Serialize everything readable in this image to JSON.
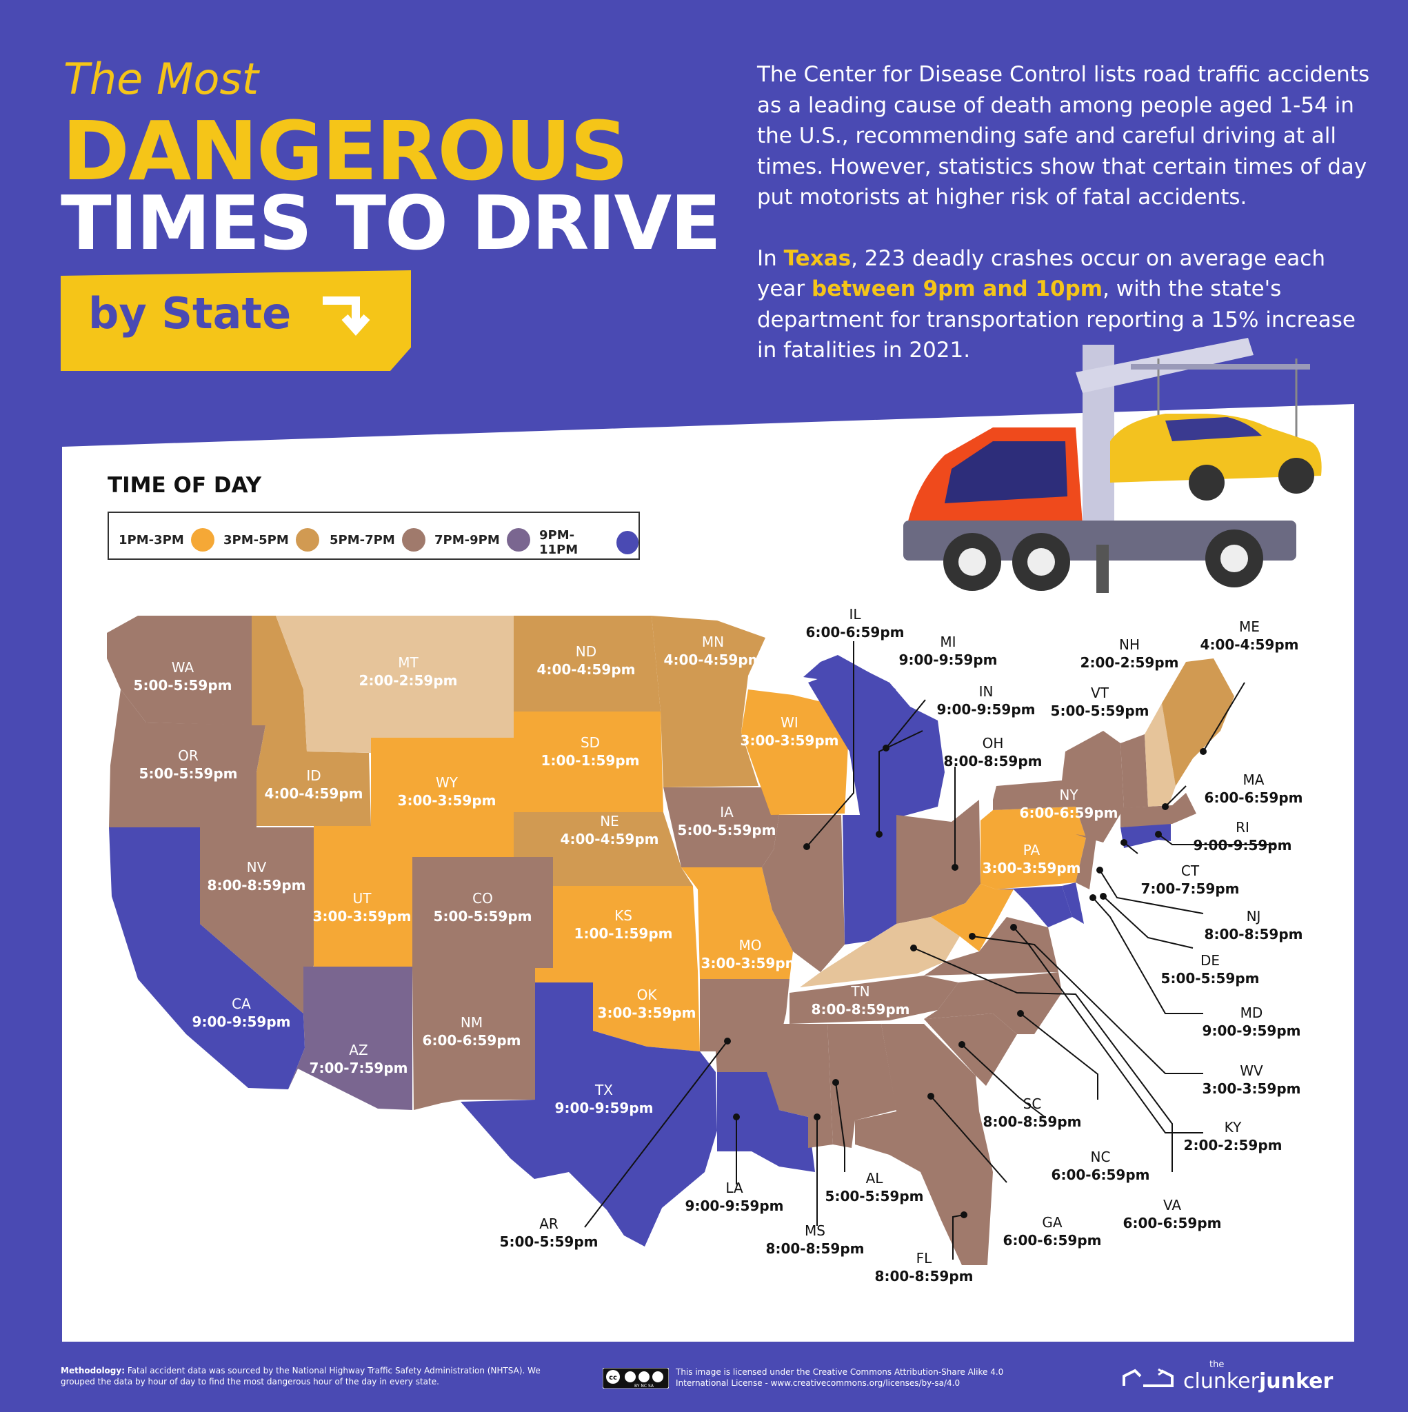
{
  "header": {
    "title_line1": "The Most",
    "title_line2": "DANGEROUS",
    "title_line3": "TIMES TO DRIVE",
    "ribbon_label": "by State"
  },
  "intro": {
    "para1": "The Center for Disease Control lists road traffic accidents as a leading cause of death among people aged 1-54 in the U.S., recommending safe and careful driving at all times. However, statistics show that certain times of day put motorists at higher risk of fatal accidents.",
    "para2_a": "In ",
    "para2_state": "Texas",
    "para2_b": ", 223 deadly crashes occur on average each year ",
    "para2_time": "between 9pm and 10pm",
    "para2_c": ", with the state's department for transportation reporting a 15% increase in fatalities in 2021."
  },
  "legend": {
    "title": "TIME OF DAY",
    "items": [
      {
        "label": "1PM-3PM",
        "color": "#f5a836"
      },
      {
        "label": "3PM-5PM",
        "color": "#d19a52"
      },
      {
        "label": "5PM-7PM",
        "color": "#a07a6c"
      },
      {
        "label": "7PM-9PM",
        "color": "#7a6690"
      },
      {
        "label": "9PM-11PM",
        "color": "#4a4ab3"
      }
    ]
  },
  "colors": {
    "background": "#4a4ab3",
    "accent": "#f5c518",
    "panel": "#ffffff",
    "light_tan": "#e6c49a"
  },
  "states": [
    {
      "abbr": "WA",
      "time": "5:00-5:59pm"
    },
    {
      "abbr": "OR",
      "time": "5:00-5:59pm"
    },
    {
      "abbr": "CA",
      "time": "9:00-9:59pm"
    },
    {
      "abbr": "NV",
      "time": "8:00-8:59pm"
    },
    {
      "abbr": "ID",
      "time": "4:00-4:59pm"
    },
    {
      "abbr": "MT",
      "time": "2:00-2:59pm"
    },
    {
      "abbr": "WY",
      "time": "3:00-3:59pm"
    },
    {
      "abbr": "UT",
      "time": "3:00-3:59pm"
    },
    {
      "abbr": "AZ",
      "time": "7:00-7:59pm"
    },
    {
      "abbr": "CO",
      "time": "5:00-5:59pm"
    },
    {
      "abbr": "NM",
      "time": "6:00-6:59pm"
    },
    {
      "abbr": "ND",
      "time": "4:00-4:59pm"
    },
    {
      "abbr": "SD",
      "time": "1:00-1:59pm"
    },
    {
      "abbr": "NE",
      "time": "4:00-4:59pm"
    },
    {
      "abbr": "KS",
      "time": "1:00-1:59pm"
    },
    {
      "abbr": "OK",
      "time": "3:00-3:59pm"
    },
    {
      "abbr": "TX",
      "time": "9:00-9:59pm"
    },
    {
      "abbr": "MN",
      "time": "4:00-4:59pm"
    },
    {
      "abbr": "IA",
      "time": "5:00-5:59pm"
    },
    {
      "abbr": "MO",
      "time": "3:00-3:59pm"
    },
    {
      "abbr": "AR",
      "time": "5:00-5:59pm"
    },
    {
      "abbr": "LA",
      "time": "9:00-9:59pm"
    },
    {
      "abbr": "WI",
      "time": "3:00-3:59pm"
    },
    {
      "abbr": "IL",
      "time": "6:00-6:59pm"
    },
    {
      "abbr": "MI",
      "time": "9:00-9:59pm"
    },
    {
      "abbr": "IN",
      "time": "9:00-9:59pm"
    },
    {
      "abbr": "OH",
      "time": "8:00-8:59pm"
    },
    {
      "abbr": "TN",
      "time": "8:00-8:59pm"
    },
    {
      "abbr": "MS",
      "time": "8:00-8:59pm"
    },
    {
      "abbr": "AL",
      "time": "5:00-5:59pm"
    },
    {
      "abbr": "FL",
      "time": "8:00-8:59pm"
    },
    {
      "abbr": "GA",
      "time": "6:00-6:59pm"
    },
    {
      "abbr": "SC",
      "time": "8:00-8:59pm"
    },
    {
      "abbr": "NC",
      "time": "6:00-6:59pm"
    },
    {
      "abbr": "VA",
      "time": "6:00-6:59pm"
    },
    {
      "abbr": "KY",
      "time": "2:00-2:59pm"
    },
    {
      "abbr": "WV",
      "time": "3:00-3:59pm"
    },
    {
      "abbr": "MD",
      "time": "9:00-9:59pm"
    },
    {
      "abbr": "DE",
      "time": "5:00-5:59pm"
    },
    {
      "abbr": "NJ",
      "time": "8:00-8:59pm"
    },
    {
      "abbr": "CT",
      "time": "7:00-7:59pm"
    },
    {
      "abbr": "RI",
      "time": "9:00-9:59pm"
    },
    {
      "abbr": "MA",
      "time": "6:00-6:59pm"
    },
    {
      "abbr": "PA",
      "time": "3:00-3:59pm"
    },
    {
      "abbr": "NY",
      "time": "6:00-6:59pm"
    },
    {
      "abbr": "VT",
      "time": "5:00-5:59pm"
    },
    {
      "abbr": "NH",
      "time": "2:00-2:59pm"
    },
    {
      "abbr": "ME",
      "time": "4:00-4:59pm"
    }
  ],
  "footer": {
    "methodology_label": "Methodology:",
    "methodology_text": "Fatal accident data was sourced by the National Highway Traffic Safety Administration (NHTSA). We grouped the data by hour of day to find the most dangerous hour of the day in every state.",
    "license_text": "This image is licensed under the Creative Commons Attribution-Share Alike 4.0 International License - www.creativecommons.org/licenses/by-sa/4.0",
    "cc_badge": "BY NC SA",
    "brand_small": "the",
    "brand_a": "clunker",
    "brand_b": "junker"
  }
}
